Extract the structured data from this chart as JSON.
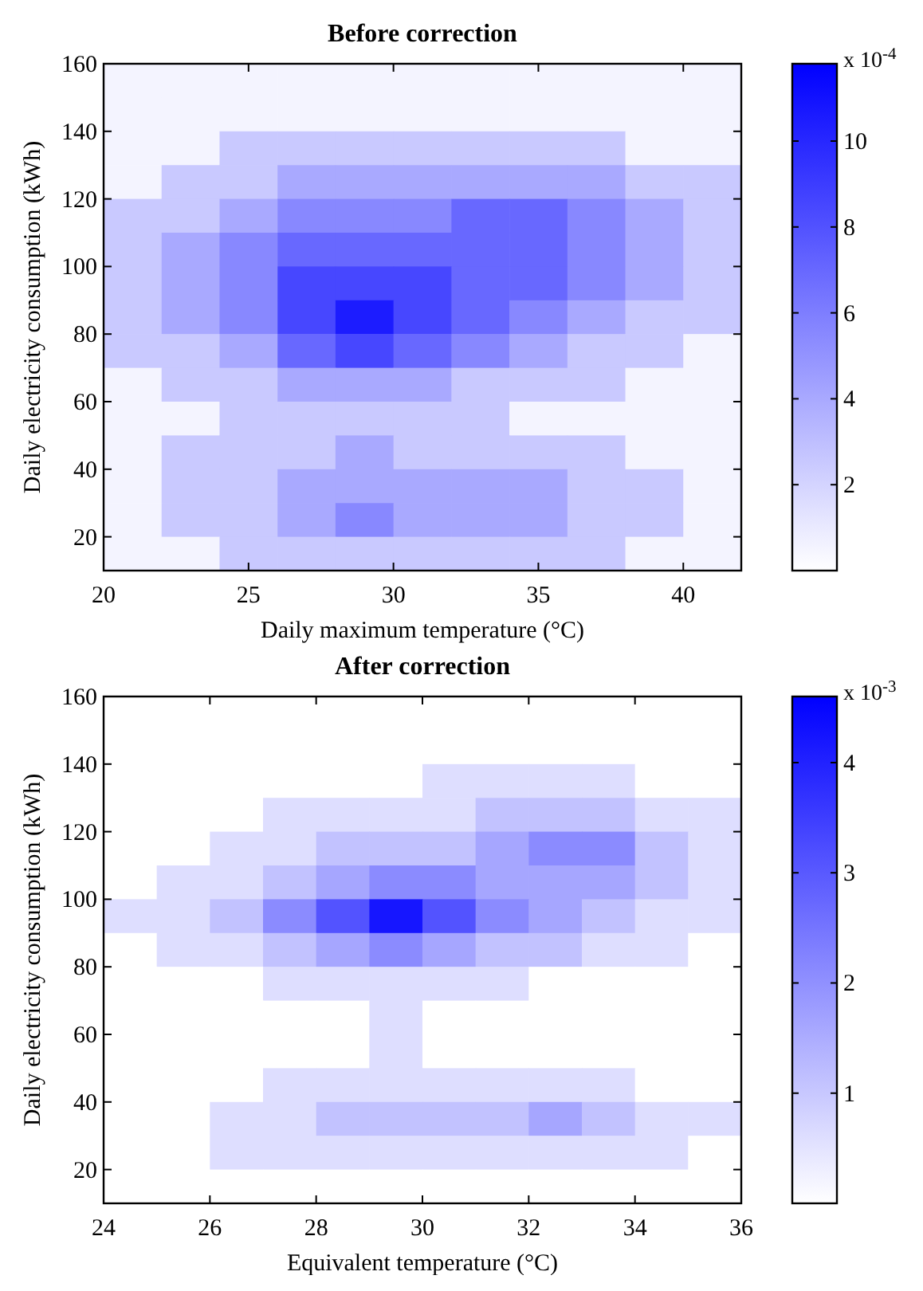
{
  "chart_data": [
    {
      "type": "heatmap",
      "title": "Before correction",
      "xlabel": "Daily maximum temperature (°C)",
      "ylabel": "Daily electricity consumption (kWh)",
      "clabel": "x 10$^{-4}$",
      "x": [
        21,
        23,
        25,
        27,
        29,
        31,
        33,
        35,
        37,
        39,
        41
      ],
      "y": [
        155,
        145,
        135,
        125,
        115,
        105,
        95,
        85,
        75,
        65,
        55,
        45,
        35,
        25,
        15
      ],
      "cells": [
        [
          0.5,
          0.5,
          0.5,
          0.5,
          0.5,
          0.5,
          0.5,
          0.5,
          0.5,
          0.5,
          0.5
        ],
        [
          0.5,
          0.5,
          0.5,
          0.5,
          0.5,
          0.5,
          0.5,
          0.5,
          0.5,
          0.5,
          0.5
        ],
        [
          0.5,
          0.5,
          2.5,
          2.5,
          2.5,
          2.5,
          2.5,
          2.5,
          2.5,
          0.5,
          0.5
        ],
        [
          0.5,
          2.5,
          2.5,
          4,
          4,
          4,
          4,
          4,
          4,
          2.5,
          2.5
        ],
        [
          2.5,
          2.5,
          4,
          5.5,
          5.5,
          5.5,
          7,
          7,
          5.5,
          4,
          2.5
        ],
        [
          2.5,
          4,
          5.5,
          7,
          7,
          7,
          7,
          7,
          5.5,
          4,
          2.5
        ],
        [
          2.5,
          4,
          5.5,
          8.5,
          8.5,
          8.5,
          7,
          7,
          5.5,
          4,
          2.5
        ],
        [
          2.5,
          4,
          5.5,
          8.5,
          10.5,
          8.5,
          7,
          5.5,
          4,
          2.5,
          2.5
        ],
        [
          2.5,
          2.5,
          4,
          7,
          8.5,
          7,
          5.5,
          4,
          2.5,
          2.5,
          0.5
        ],
        [
          0.5,
          2.5,
          2.5,
          4,
          4,
          4,
          2.5,
          2.5,
          2.5,
          0.5,
          0.5
        ],
        [
          0.5,
          0.5,
          2.5,
          2.5,
          2.5,
          2.5,
          2.5,
          0.5,
          0.5,
          0.5,
          0.5
        ],
        [
          0.5,
          2.5,
          2.5,
          2.5,
          4,
          2.5,
          2.5,
          2.5,
          2.5,
          0.5,
          0.5
        ],
        [
          0.5,
          2.5,
          2.5,
          4,
          4,
          4,
          4,
          4,
          2.5,
          2.5,
          0.5
        ],
        [
          0.5,
          2.5,
          2.5,
          4,
          5.5,
          4,
          4,
          4,
          2.5,
          2.5,
          0.5
        ],
        [
          0.5,
          0.5,
          2.5,
          2.5,
          2.5,
          2.5,
          2.5,
          2.5,
          2.5,
          0.5,
          0.5
        ]
      ],
      "xlim": [
        20,
        42
      ],
      "xticks": [
        20,
        25,
        30,
        35,
        40
      ],
      "ylim": [
        10,
        160
      ],
      "yticks": [
        20,
        40,
        60,
        80,
        100,
        120,
        140,
        160
      ],
      "clim": [
        0,
        11.8
      ],
      "cticks": [
        2,
        4,
        6,
        8,
        10
      ]
    },
    {
      "type": "heatmap",
      "title": "After correction",
      "xlabel": "Equivalent temperature (°C)",
      "ylabel": "Daily electricity consumption (kWh)",
      "clabel": "x 10$^{-3}$",
      "x": [
        24.5,
        25.5,
        26.5,
        27.5,
        28.5,
        29.5,
        30.5,
        31.5,
        32.5,
        33.5,
        34.5,
        35.5
      ],
      "y": [
        155,
        145,
        135,
        125,
        115,
        105,
        95,
        85,
        75,
        65,
        55,
        45,
        35,
        25,
        15
      ],
      "cells": [
        [
          0,
          0,
          0,
          0,
          0,
          0,
          0,
          0,
          0,
          0,
          0,
          0
        ],
        [
          0,
          0,
          0,
          0,
          0,
          0,
          0,
          0,
          0,
          0,
          0,
          0
        ],
        [
          0,
          0,
          0,
          0,
          0,
          0,
          0.6,
          0.6,
          0.6,
          0.6,
          0,
          0
        ],
        [
          0,
          0,
          0,
          0.6,
          0.6,
          0.6,
          0.6,
          1.1,
          1.1,
          1.1,
          0.6,
          0.6
        ],
        [
          0,
          0,
          0.6,
          0.6,
          1.1,
          1.1,
          1.1,
          1.6,
          2.1,
          2.1,
          1.1,
          0.6
        ],
        [
          0,
          0.6,
          0.6,
          1.1,
          1.6,
          2.1,
          2.1,
          1.6,
          1.6,
          1.6,
          1.1,
          0.6
        ],
        [
          0.6,
          0.6,
          1.1,
          2.1,
          3.1,
          4.2,
          3.1,
          2.1,
          1.6,
          1.1,
          0.6,
          0.6
        ],
        [
          0,
          0.6,
          0.6,
          1.1,
          1.6,
          2.1,
          1.6,
          1.1,
          1.1,
          0.6,
          0.6,
          0
        ],
        [
          0,
          0,
          0,
          0.6,
          0.6,
          0.6,
          0.6,
          0.6,
          0,
          0,
          0,
          0
        ],
        [
          0,
          0,
          0,
          0,
          0,
          0.6,
          0,
          0,
          0,
          0,
          0,
          0
        ],
        [
          0,
          0,
          0,
          0,
          0,
          0.6,
          0,
          0,
          0,
          0,
          0,
          0
        ],
        [
          0,
          0,
          0,
          0.6,
          0.6,
          0.6,
          0.6,
          0.6,
          0.6,
          0.6,
          0,
          0
        ],
        [
          0,
          0,
          0.6,
          0.6,
          1.1,
          1.1,
          1.1,
          1.1,
          1.6,
          1.1,
          0.6,
          0.6
        ],
        [
          0,
          0,
          0.6,
          0.6,
          0.6,
          0.6,
          0.6,
          0.6,
          0.6,
          0.6,
          0.6,
          0
        ],
        [
          0,
          0,
          0,
          0,
          0,
          0,
          0,
          0,
          0,
          0,
          0,
          0
        ]
      ],
      "xlim": [
        24,
        36
      ],
      "xticks": [
        24,
        26,
        28,
        30,
        32,
        34,
        36
      ],
      "ylim": [
        10,
        160
      ],
      "yticks": [
        20,
        40,
        60,
        80,
        100,
        120,
        140,
        160
      ],
      "clim": [
        0,
        4.6
      ],
      "cticks": [
        1,
        2,
        3,
        4
      ]
    }
  ]
}
